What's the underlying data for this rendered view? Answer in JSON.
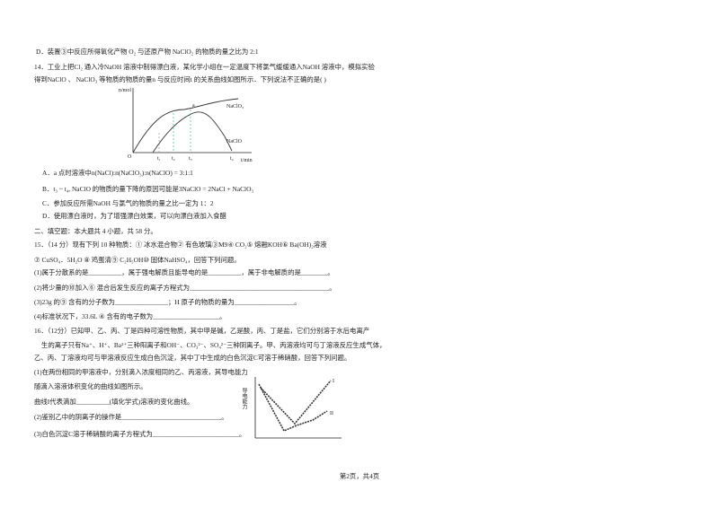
{
  "lines": [
    "D．装置③中反应所得氧化产物 O₂ 与还原产物 NaClO₂ 的物质的量之比为 2:1",
    "14．工业上把Cl₂ 通入冷NaOH 溶液中制得漂白液，某化学小组在一定温度下将氯气缓缓通入NaOH 溶液中，模拟实验",
    "得到NaClO 、 NaClO₃ 等物质的物质的量n 与反应时间t 的关系曲线如图所示．下列说法不正确的是(     )",
    "A．a 点时溶液中n(NaCl):n(NaClO₃):n(NaClO) = 3:1:1",
    "B．t₃ ~ t₄, NaClO 的物质的量下降的原因可能是3NaClO = 2NaCl + NaClO₃",
    "C．参加反应所需NaOH 与氯气的物质的量之比一定为 1：2",
    "D．使用漂白液时，为了增强漂白效果，可以向漂白液加入食醋",
    "二、填空题：本大题共 4 小题，共 58 分。",
    "15．（14 分）现有下列 10 种物质：① 冰水混合物② 有色玻璃③M9④ CO₂⑤ 熔融KOH⑥ Ba(OH)₂溶液",
    "⑦ CuSO₄．5H₂O ⑧ 鸡蛋清⑨ C₂H₅OH⑩ 固体NaHSO₄，回答下列问题。",
    "(1)属于分散系的是__________，属于强电解质且能导电的是__________，属于非电解质的是________。",
    "(2)将少量的⑩加入⑥ 混合后发生反应的离子方程式为__________________________________________。",
    "(3)23g 的⑨ 含有的分子数为________________；H 原子的物质的量为__________________。",
    "(4)标准状况下，33.6L ④ 含有的电子数为____________________。",
    "16．（12分）已知甲、乙、丙、丁是四种可溶性物质，其中甲是碱，乙是酸，丙、丁是盐，它们分别溶于水后电离产",
    "生的离子只有Na⁺、H⁺、Ba²⁺三种阳离子和OH⁻、CO₃²⁻、SO₄²⁻三种阴离子。甲、丙溶液均可与丁溶液反应生成气体，",
    "乙、丙、丁溶液均可与甲溶液反应生成白色沉淀，其中丁中生成的白色沉淀C可溶于稀硝酸，回答下列问题。",
    "(1)在两份相同的甲溶液中，分别滴入浓度相同的乙、丙溶液，其导电能力",
    "随滴入溶液体积变化的曲线如图所示。",
    "曲线I代表滴加__________(填化学式)溶液的变化曲线。",
    "(2)鉴别乙中的阴离子的操作是______________________________。",
    "(3)白色沉淀C溶于稀硝酸的离子方程式为__________________________。"
  ],
  "figure1": {
    "y_axis": "n/mol",
    "x_axis": "t/min",
    "origin": "O",
    "point": "a",
    "curve1": "NaClO₃",
    "curve2": "NaClO",
    "ticks": [
      "t₁",
      "t₂",
      "t₃",
      "t₄"
    ]
  },
  "figure2": {
    "y_axis": "导电能力",
    "curve1": "I",
    "curve2": "II"
  },
  "footer": "第2页，共4页"
}
